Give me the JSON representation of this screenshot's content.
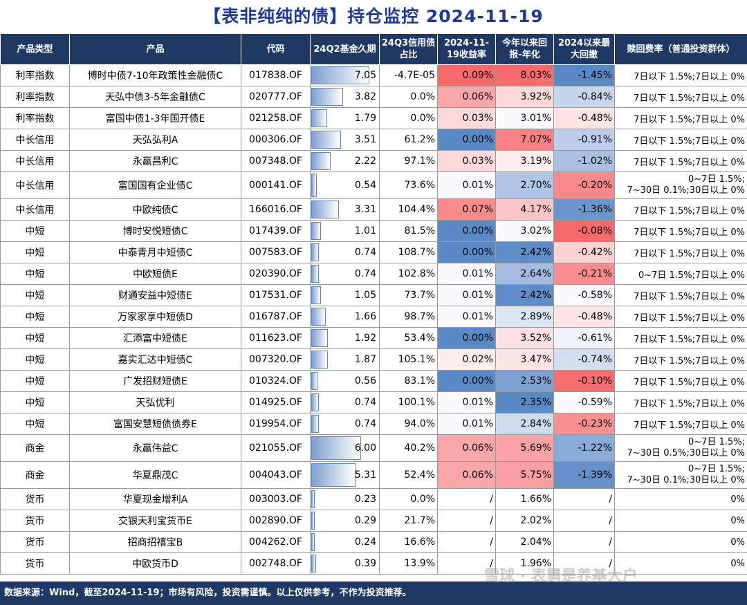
{
  "title": "【表非纯纯的债】持仓监控   2024-11-19",
  "headers": [
    "产品类型",
    "产品",
    "代码",
    "24Q2基金久期",
    "24Q3信用债占比",
    "2024-11-19收益率",
    "今年以来回报-年化",
    "2024以来最大回撤",
    "赎回费率（普通投资群体）"
  ],
  "max_duration": 7.05,
  "colors": {
    "header_bg": "#1f3864",
    "title": "#1f3a93",
    "red_strong": "#f8696b",
    "blue_strong": "#5a8ac6",
    "white": "#ffffff"
  },
  "rows": [
    {
      "type": "利率指数",
      "name": "博时中债7-10年政策性金融债C",
      "code": "017838.OF",
      "duration": "7.05",
      "credit": "-4.7E-05",
      "ret": "0.09%",
      "ytd": "8.03%",
      "mdd": "-1.45%",
      "fee": "7日以下 1.5%;7日以上 0%",
      "ret_bg": "#f8696b",
      "ytd_bg": "#f8696b",
      "mdd_bg": "#5a8ac6"
    },
    {
      "type": "利率指数",
      "name": "天弘中债3-5年金融债C",
      "code": "020777.OF",
      "duration": "3.82",
      "credit": "0.0%",
      "ret": "0.06%",
      "ytd": "3.92%",
      "mdd": "-0.84%",
      "fee": "7日以下 1.5%;7日以上 0%",
      "ret_bg": "#f9a6a8",
      "ytd_bg": "#fcd8d9",
      "mdd_bg": "#c5d5ec"
    },
    {
      "type": "利率指数",
      "name": "富国中债1-3年国开债E",
      "code": "021258.OF",
      "duration": "1.79",
      "credit": "0.0%",
      "ret": "0.03%",
      "ytd": "3.01%",
      "mdd": "-0.48%",
      "fee": "7日以下 1.5%;7日以上 0%",
      "ret_bg": "#fcdadb",
      "ytd_bg": "#fbfbfe",
      "mdd_bg": "#fce3e4"
    },
    {
      "type": "中长信用",
      "name": "天弘弘利A",
      "code": "000306.OF",
      "duration": "3.51",
      "credit": "61.2%",
      "ret": "0.00%",
      "ytd": "7.07%",
      "mdd": "-0.91%",
      "fee": "7日以下 1.5%;7日以上 0%",
      "ret_bg": "#5a8ac6",
      "ytd_bg": "#f98183",
      "mdd_bg": "#bccee9"
    },
    {
      "type": "中长信用",
      "name": "永赢昌利C",
      "code": "007348.OF",
      "duration": "2.22",
      "credit": "97.1%",
      "ret": "0.03%",
      "ytd": "3.19%",
      "mdd": "-1.02%",
      "fee": "7日以下 1.5%;7日以上 0%",
      "ret_bg": "#fcdadb",
      "ytd_bg": "#fdeeee",
      "mdd_bg": "#a9c0e2"
    },
    {
      "type": "中长信用",
      "name": "富国国有企业债C",
      "code": "000141.OF",
      "duration": "0.54",
      "credit": "73.6%",
      "ret": "0.01%",
      "ytd": "2.70%",
      "mdd": "-0.20%",
      "fee": "0~7日 1.5%;\n7~30日 0.1%;30日以上 0%",
      "ret_bg": "#fbfbfe",
      "ytd_bg": "#b0c5e5",
      "mdd_bg": "#f9898b",
      "tall": true
    },
    {
      "type": "中长信用",
      "name": "中欧纯债C",
      "code": "166016.OF",
      "duration": "3.31",
      "credit": "104.4%",
      "ret": "0.07%",
      "ytd": "4.17%",
      "mdd": "-1.36%",
      "fee": "7日以下 1.5%;7日以上 0%",
      "ret_bg": "#f98b8d",
      "ytd_bg": "#fbc5c6",
      "mdd_bg": "#6b96cb"
    },
    {
      "type": "中短",
      "name": "博时安悦短债C",
      "code": "017439.OF",
      "duration": "1.01",
      "credit": "81.5%",
      "ret": "0.00%",
      "ytd": "3.02%",
      "mdd": "-0.08%",
      "fee": "7日以下 1.5%;7日以上 0%",
      "ret_bg": "#5a8ac6",
      "ytd_bg": "#fbfbfe",
      "mdd_bg": "#f8696b"
    },
    {
      "type": "中短",
      "name": "中泰青月中短债C",
      "code": "007583.OF",
      "duration": "0.74",
      "credit": "108.7%",
      "ret": "0.00%",
      "ytd": "2.42%",
      "mdd": "-0.42%",
      "fee": "7日以下 1.5%;7日以上 0%",
      "ret_bg": "#5a8ac6",
      "ytd_bg": "#5f8dc8",
      "mdd_bg": "#fcd2d3"
    },
    {
      "type": "中短",
      "name": "中欧短债E",
      "code": "020390.OF",
      "duration": "0.74",
      "credit": "102.8%",
      "ret": "0.01%",
      "ytd": "2.64%",
      "mdd": "-0.21%",
      "fee": "0~7日 1.5%;7日以上 0%",
      "ret_bg": "#fbfbfe",
      "ytd_bg": "#a3bbe0",
      "mdd_bg": "#f98c8e"
    },
    {
      "type": "中短",
      "name": "财通安益中短债E",
      "code": "017531.OF",
      "duration": "1.05",
      "credit": "73.7%",
      "ret": "0.01%",
      "ytd": "2.42%",
      "mdd": "-0.58%",
      "fee": "7日以下 1.5%;7日以上 0%",
      "ret_bg": "#fbfbfe",
      "ytd_bg": "#5f8dc8",
      "mdd_bg": "#fbfbfe"
    },
    {
      "type": "中短",
      "name": "万家家享中短债D",
      "code": "016787.OF",
      "duration": "1.66",
      "credit": "98.7%",
      "ret": "0.01%",
      "ytd": "2.89%",
      "mdd": "-0.48%",
      "fee": "7日以下 1.5%;7日以上 0%",
      "ret_bg": "#fbfbfe",
      "ytd_bg": "#dde6f4",
      "mdd_bg": "#fce3e4"
    },
    {
      "type": "中短",
      "name": "汇添富中短债E",
      "code": "011623.OF",
      "duration": "1.92",
      "credit": "53.4%",
      "ret": "0.00%",
      "ytd": "3.52%",
      "mdd": "-0.61%",
      "fee": "7日以下 1.5%;7日以上 0%",
      "ret_bg": "#5a8ac6",
      "ytd_bg": "#fce1e2",
      "mdd_bg": "#f0f4fa"
    },
    {
      "type": "中短",
      "name": "嘉实汇达中短债C",
      "code": "007320.OF",
      "duration": "1.87",
      "credit": "105.1%",
      "ret": "0.02%",
      "ytd": "3.47%",
      "mdd": "-0.74%",
      "fee": "7日以下 1.5%;7日以上 0%",
      "ret_bg": "#fdecec",
      "ytd_bg": "#fce3e4",
      "mdd_bg": "#d3def0"
    },
    {
      "type": "中短",
      "name": "广发招财短债E",
      "code": "010324.OF",
      "duration": "0.56",
      "credit": "83.1%",
      "ret": "0.00%",
      "ytd": "2.53%",
      "mdd": "-0.10%",
      "fee": "7日以下 1.5%;7日以上 0%",
      "ret_bg": "#5a8ac6",
      "ytd_bg": "#7fa2d4",
      "mdd_bg": "#f86e70"
    },
    {
      "type": "中短",
      "name": "天弘优利",
      "code": "014925.OF",
      "duration": "0.74",
      "credit": "100.1%",
      "ret": "0.01%",
      "ytd": "2.35%",
      "mdd": "-0.59%",
      "fee": "7日以下 1.5%;7日以上 0%",
      "ret_bg": "#fbfbfe",
      "ytd_bg": "#5a8ac6",
      "mdd_bg": "#fbfbfe"
    },
    {
      "type": "中短",
      "name": "富国安慧短债债券E",
      "code": "019954.OF",
      "duration": "0.74",
      "credit": "94.0%",
      "ret": "0.01%",
      "ytd": "2.84%",
      "mdd": "-0.23%",
      "fee": "7日以下 1.5%;7日以上 0%",
      "ret_bg": "#fbfbfe",
      "ytd_bg": "#cfdcef",
      "mdd_bg": "#f99193"
    },
    {
      "type": "商金",
      "name": "永赢伟益C",
      "code": "021055.OF",
      "duration": "6.00",
      "credit": "40.2%",
      "ret": "0.06%",
      "ytd": "5.69%",
      "mdd": "-1.22%",
      "fee": "0~7日 1.5%;\n7~30日 0.5%;30日以上 0%",
      "ret_bg": "#f9a6a8",
      "ytd_bg": "#faa2a4",
      "mdd_bg": "#8aaad8",
      "tall": true
    },
    {
      "type": "商金",
      "name": "华夏鼎茂C",
      "code": "004043.OF",
      "duration": "5.31",
      "credit": "52.4%",
      "ret": "0.06%",
      "ytd": "5.75%",
      "mdd": "-1.39%",
      "fee": "0~7日 1.5%;\n7~30日 0.1%;30日以上 0%",
      "ret_bg": "#f9a6a8",
      "ytd_bg": "#fa9fa1",
      "mdd_bg": "#6590c9",
      "tall": true
    },
    {
      "type": "货币",
      "name": "华夏现金增利A",
      "code": "003003.OF",
      "duration": "0.23",
      "credit": "0.0%",
      "ret": "/",
      "ytd": "1.66%",
      "mdd": "/",
      "fee": "0%",
      "ret_bg": "#ffffff",
      "ytd_bg": "#ffffff",
      "mdd_bg": "#ffffff"
    },
    {
      "type": "货币",
      "name": "交银天利宝货币E",
      "code": "002890.OF",
      "duration": "0.29",
      "credit": "21.7%",
      "ret": "/",
      "ytd": "2.02%",
      "mdd": "/",
      "fee": "0%",
      "ret_bg": "#ffffff",
      "ytd_bg": "#ffffff",
      "mdd_bg": "#ffffff"
    },
    {
      "type": "货币",
      "name": "招商招禧宝B",
      "code": "004262.OF",
      "duration": "0.24",
      "credit": "16.6%",
      "ret": "/",
      "ytd": "2.04%",
      "mdd": "/",
      "fee": "0%",
      "ret_bg": "#ffffff",
      "ytd_bg": "#ffffff",
      "mdd_bg": "#ffffff"
    },
    {
      "type": "货币",
      "name": "中欧货币D",
      "code": "002748.OF",
      "duration": "0.39",
      "credit": "13.9%",
      "ret": "/",
      "ytd": "1.96%",
      "mdd": "/",
      "fee": "0%",
      "ret_bg": "#ffffff",
      "ytd_bg": "#ffffff",
      "mdd_bg": "#ffffff"
    }
  ],
  "footer": "数据来源：Wind，截至2024-11-19；市场有风险，投资需谨慎。以上仅供参考，不作为投资推荐。",
  "watermark": "雪球 · 表舅是养基大户"
}
